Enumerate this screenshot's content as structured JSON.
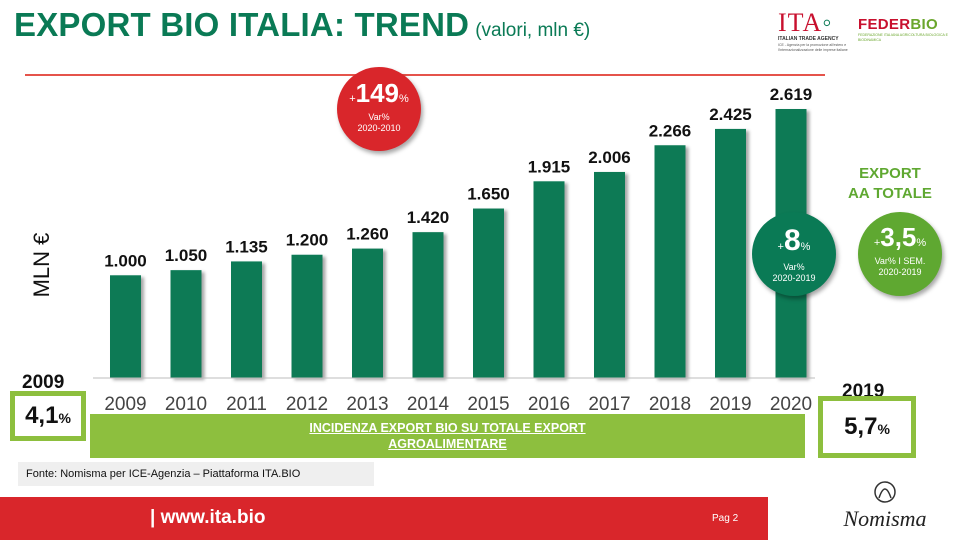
{
  "header": {
    "title": "EXPORT BIO ITALIA: TREND",
    "subtitle": "(valori, mln €)"
  },
  "logos": {
    "ita": {
      "name": "ITA",
      "caption": "ITALIAN TRADE AGENCY",
      "desc": "ICE - Agenzia per la promozione all'estero e l'internazionalizzazione delle imprese italiane"
    },
    "federbio": {
      "name_red": "FEDER",
      "name_green": "BIO",
      "caption": "FEDERAZIONE ITALIANA AGRICOLTURA BIOLOGICA E BIODINAMICA"
    },
    "nomisma": {
      "name": "Nomisma"
    }
  },
  "chart_data": {
    "type": "bar",
    "title": "EXPORT BIO ITALIA: TREND",
    "ylabel": "MLN €",
    "categories": [
      "2009",
      "2010",
      "2011",
      "2012",
      "2013",
      "2014",
      "2015",
      "2016",
      "2017",
      "2018",
      "2019",
      "2020"
    ],
    "values": [
      1000,
      1050,
      1135,
      1200,
      1260,
      1420,
      1650,
      1915,
      2006,
      2266,
      2425,
      2619
    ],
    "value_labels": [
      "1.000",
      "1.050",
      "1.135",
      "1.200",
      "1.260",
      "1.420",
      "1.650",
      "1.915",
      "2.006",
      "2.266",
      "2.425",
      "2.619"
    ],
    "ylim": [
      0,
      2700
    ],
    "grid": false,
    "bar_color": "#0a7a55"
  },
  "bubbles": {
    "var_2020_2010": {
      "sign": "+",
      "value": "149",
      "unit": "%",
      "label1": "Var%",
      "label2": "2020-2010",
      "color": "#d9262b"
    },
    "var_2020_2019": {
      "sign": "+",
      "value": "8",
      "unit": "%",
      "label1": "Var%",
      "label2": "2020-2019",
      "color": "#0a7a55"
    },
    "export_aa": {
      "heading1": "EXPORT",
      "heading2": "AA TOTALE",
      "sign": "+",
      "value": "3,5",
      "unit": "%",
      "label1": "Var% I SEM.",
      "label2": "2020-2019",
      "color": "#5fa831"
    }
  },
  "incidenza": {
    "left_year": "2009",
    "left_value": "4,1",
    "left_unit": "%",
    "right_year": "2019",
    "right_value": "5,7",
    "right_unit": "%",
    "line1": "INCIDENZA  EXPORT BIO SU TOTALE EXPORT",
    "line2": "AGROALIMENTARE"
  },
  "source": "Fonte: Nomisma per ICE-Agenzia – Piattaforma ITA.BIO",
  "footer": {
    "url": "| www.ita.bio",
    "page": "Pag 2"
  }
}
